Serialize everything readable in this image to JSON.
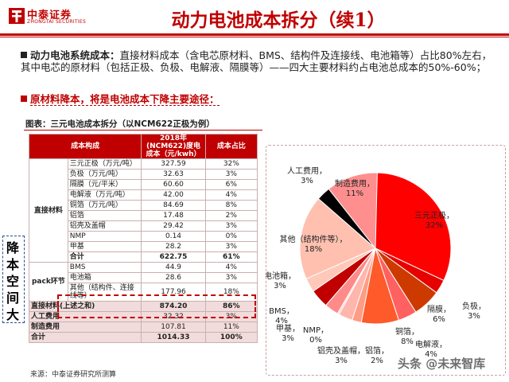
{
  "header": {
    "logo_cn": "中泰证券",
    "logo_en": "ZHONGTAI SECURITIES",
    "title": "动力电池成本拆分（续1）"
  },
  "bullets": [
    {
      "lead": "动力电池系统成本：",
      "text": "直接材料成本（含电芯原材料、BMS、结构件及连接线、电池箱等）占比80%左右，其中电芯的原材料（包括正极、负极、电解液、隔膜等）——四大主要材料约占电池总成本的50%-60%；"
    },
    {
      "text": "原材料降本，将是电池成本下降主要途径："
    }
  ],
  "caption": "图表：三元电池成本拆分（以NCM622正极为例）",
  "table": {
    "headers": [
      "成本构成",
      "2018年(NCM622)度电成本（元/kwh）",
      "成本占比"
    ],
    "group_direct": "直接材料",
    "group_pack": "pack环节",
    "rows": [
      {
        "name": "三元正极（万元/吨）",
        "cost": "327.59",
        "share": "32%"
      },
      {
        "name": "负极（万元/吨）",
        "cost": "32.63",
        "share": "3%"
      },
      {
        "name": "隔膜（元/平米）",
        "cost": "60.60",
        "share": "6%"
      },
      {
        "name": "电解液（万元/吨）",
        "cost": "42.00",
        "share": "4%"
      },
      {
        "name": "铜箔（万元/吨）",
        "cost": "84.69",
        "share": "8%"
      },
      {
        "name": "铝箔",
        "cost": "17.48",
        "share": "2%"
      },
      {
        "name": "铝壳及盖帽",
        "cost": "29.42",
        "share": "3%"
      },
      {
        "name": "NMP",
        "cost": "0.14",
        "share": "0%"
      },
      {
        "name": "甲基",
        "cost": "28.2",
        "share": "3%"
      },
      {
        "name": "合计",
        "cost": "622.75",
        "share": "61%"
      },
      {
        "name": "BMS",
        "cost": "44.9",
        "share": "4%"
      },
      {
        "name": "电池箱",
        "cost": "28.6",
        "share": "3%"
      },
      {
        "name": "其他（结构件、连接线等）",
        "cost": "177.96",
        "share": "18%"
      }
    ],
    "summary": [
      {
        "name": "直接材料(上述之和)",
        "cost": "874.20",
        "share": "86%"
      },
      {
        "name": "人工费用",
        "cost": "32.32",
        "share": "3%"
      },
      {
        "name": "制造费用",
        "cost": "107.81",
        "share": "11%"
      },
      {
        "name": "合计",
        "cost": "1014.33",
        "share": "100%"
      }
    ]
  },
  "side_label": [
    "降",
    "本",
    "空",
    "间",
    "大"
  ],
  "source": "来源：中泰证券研究所测算",
  "watermark": "头条 @未来智库",
  "chart_data": {
    "type": "pie",
    "slices": [
      {
        "label": "三元正极",
        "value": 32,
        "pct": "32%",
        "color": "#ff0000"
      },
      {
        "label": "负极",
        "value": 3,
        "pct": "3%",
        "color": "#e60000"
      },
      {
        "label": "隔膜",
        "value": 6,
        "pct": "6%",
        "color": "#cc3a00"
      },
      {
        "label": "电解液",
        "value": 4,
        "pct": "4%",
        "color": "#ff6060"
      },
      {
        "label": "铜箔",
        "value": 8,
        "pct": "8%",
        "color": "#ff5a2a"
      },
      {
        "label": "铝箔",
        "value": 2,
        "pct": "2%",
        "color": "#ff9c84"
      },
      {
        "label": "铝壳及盖帽",
        "value": 3,
        "pct": "3%",
        "color": "#ffb6ac"
      },
      {
        "label": "NMP",
        "value": 0,
        "pct": "0%",
        "color": "#ffd3cc"
      },
      {
        "label": "甲基",
        "value": 3,
        "pct": "3%",
        "color": "#ff8a8a"
      },
      {
        "label": "BMS",
        "value": 4,
        "pct": "4%",
        "color": "#c00000"
      },
      {
        "label": "电池箱",
        "value": 3,
        "pct": "3%",
        "color": "#ffc8b8"
      },
      {
        "label": "其他（结构件等）",
        "value": 18,
        "pct": "18%",
        "color": "#ffc0b0"
      },
      {
        "label": "人工费用",
        "value": 3,
        "pct": "3%",
        "color": "#000000"
      },
      {
        "label": "制造费用",
        "value": 11,
        "pct": "11%",
        "color": "#ff8f8f"
      }
    ]
  }
}
